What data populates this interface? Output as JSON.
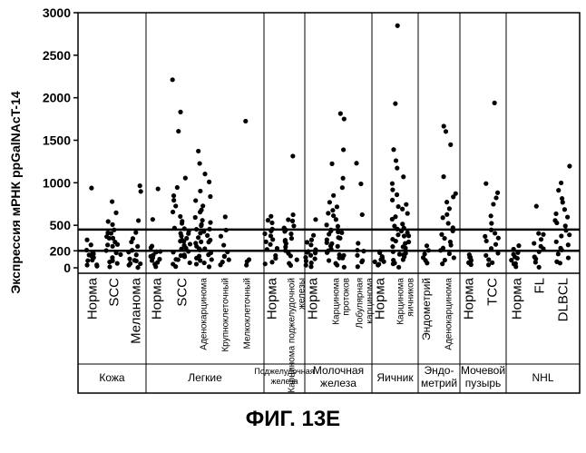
{
  "chart_data": {
    "type": "scatter",
    "title": "",
    "ylabel": "Экспрессия мРНК ppGalNAcT-14",
    "ylim": [
      -60,
      3000
    ],
    "yticks": [
      0,
      200,
      500,
      1000,
      1500,
      2000,
      2500,
      3000
    ],
    "threshold_lines": [
      200,
      450
    ],
    "groups": [
      {
        "label": "Кожа",
        "categories": [
          {
            "label": "Норма",
            "values": [
              940,
              320,
              270,
              220,
              180,
              160,
              150,
              130,
              110,
              90,
              70,
              50,
              30,
              10
            ]
          },
          {
            "label": "SCC",
            "values": [
              780,
              640,
              560,
              500,
              440,
              420,
              400,
              380,
              360,
              340,
              300,
              280,
              260,
              240,
              200,
              180,
              150,
              120,
              100,
              80,
              60,
              40,
              20
            ]
          },
          {
            "label": "Меланома",
            "values": [
              980,
              910,
              560,
              400,
              340,
              300,
              260,
              220,
              180,
              150,
              120,
              100,
              80,
              60,
              40,
              20,
              10
            ]
          }
        ]
      },
      {
        "label": "Легкие",
        "categories": [
          {
            "label": "Норма",
            "values": [
              940,
              580,
              240,
              220,
              200,
              180,
              170,
              150,
              130,
              110,
              90,
              70,
              50,
              30,
              10
            ]
          },
          {
            "label": "SCC",
            "values": [
              2220,
              1840,
              1620,
              1060,
              940,
              860,
              780,
              720,
              660,
              600,
              560,
              520,
              480,
              460,
              440,
              420,
              400,
              380,
              360,
              340,
              320,
              300,
              280,
              260,
              240,
              220,
              200,
              180,
              160,
              140,
              120,
              100,
              80,
              60,
              40,
              20
            ]
          },
          {
            "label": "Аденокарцинома",
            "values": [
              1380,
              1240,
              1100,
              1000,
              900,
              840,
              780,
              720,
              680,
              640,
              600,
              560,
              520,
              500,
              480,
              460,
              440,
              420,
              400,
              380,
              360,
              340,
              320,
              300,
              280,
              260,
              240,
              220,
              200,
              180,
              160,
              140,
              120,
              100,
              80,
              60,
              40,
              20
            ]
          },
          {
            "label": "Крупноклеточный",
            "values": [
              600,
              440,
              360,
              280,
              200,
              150,
              120,
              90,
              60,
              30
            ]
          },
          {
            "label": "Мелкоклеточный",
            "values": [
              1740,
              100,
              60,
              20
            ]
          }
        ]
      },
      {
        "label": "Поджелудочная железа",
        "categories": [
          {
            "label": "Норма",
            "values": [
              600,
              560,
              520,
              460,
              420,
              400,
              360,
              320,
              300,
              280,
              240,
              200,
              160,
              120,
              80,
              40
            ]
          },
          {
            "label": "Карцинома поджелудочной железы",
            "values": [
              1300,
              620,
              580,
              540,
              500,
              460,
              440,
              420,
              400,
              360,
              320,
              300,
              280,
              240,
              200,
              180,
              140,
              100,
              60,
              20
            ]
          }
        ]
      },
      {
        "label": "Молочная железа",
        "categories": [
          {
            "label": "Норма",
            "values": [
              560,
              380,
              340,
              300,
              260,
              220,
              200,
              180,
              160,
              140,
              120,
              100,
              80,
              60,
              40,
              20
            ]
          },
          {
            "label": "Карцинома протоков",
            "values": [
              1800,
              1760,
              1380,
              1220,
              1060,
              940,
              860,
              780,
              720,
              680,
              640,
              600,
              560,
              520,
              480,
              460,
              440,
              420,
              400,
              380,
              360,
              340,
              320,
              300,
              280,
              260,
              240,
              220,
              200,
              180,
              160,
              140,
              120,
              100,
              80,
              60,
              40,
              20
            ]
          },
          {
            "label": "Лобулярная карцинома",
            "values": [
              1220,
              980,
              620,
              280,
              220,
              180,
              140,
              100,
              60,
              20
            ]
          }
        ]
      },
      {
        "label": "Яичник",
        "categories": [
          {
            "label": "Норма",
            "values": [
              200,
              170,
              140,
              120,
              100,
              80,
              60,
              40,
              20
            ]
          },
          {
            "label": "Карцинома яичников",
            "values": [
              2840,
              1920,
              1380,
              1260,
              1160,
              1060,
              980,
              920,
              860,
              800,
              760,
              720,
              680,
              640,
              600,
              560,
              520,
              500,
              480,
              460,
              440,
              420,
              400,
              380,
              360,
              340,
              320,
              300,
              280,
              260,
              240,
              220,
              200,
              180,
              160,
              140,
              120,
              100,
              80,
              60,
              40,
              20
            ]
          }
        ]
      },
      {
        "label": "Эндо- метрий",
        "categories": [
          {
            "label": "Эндометрий",
            "values": [
              260,
              200,
              150,
              110,
              80,
              40
            ]
          },
          {
            "label": "Аденокарцинома",
            "values": [
              1680,
              1600,
              1460,
              1060,
              860,
              820,
              760,
              700,
              640,
              580,
              520,
              480,
              440,
              400,
              360,
              320,
              280,
              240,
              200,
              160,
              120,
              80,
              40
            ]
          }
        ]
      },
      {
        "label": "Мочевой пузырь",
        "categories": [
          {
            "label": "Норма",
            "values": [
              160,
              130,
              110,
              90,
              70,
              50,
              30
            ]
          },
          {
            "label": "TCC",
            "values": [
              1940,
              1000,
              880,
              820,
              740,
              600,
              520,
              460,
              420,
              380,
              340,
              300,
              260,
              220,
              180,
              140,
              100,
              60,
              20
            ]
          }
        ]
      },
      {
        "label": "NHL",
        "categories": [
          {
            "label": "Норма",
            "values": [
              260,
              220,
              180,
              150,
              120,
              100,
              80,
              60,
              40,
              20
            ]
          },
          {
            "label": "FL",
            "values": [
              740,
              420,
              380,
              340,
              300,
              260,
              220,
              180,
              140,
              100,
              60,
              20
            ]
          },
          {
            "label": "DLBCL",
            "values": [
              1180,
              1000,
              900,
              820,
              760,
              700,
              640,
              600,
              560,
              520,
              480,
              440,
              400,
              360,
              320,
              280,
              240,
              200,
              160,
              120,
              80,
              40
            ]
          }
        ]
      }
    ]
  },
  "caption": "ФИГ. 13E",
  "colors": {
    "ink": "#000000",
    "background": "#ffffff"
  }
}
